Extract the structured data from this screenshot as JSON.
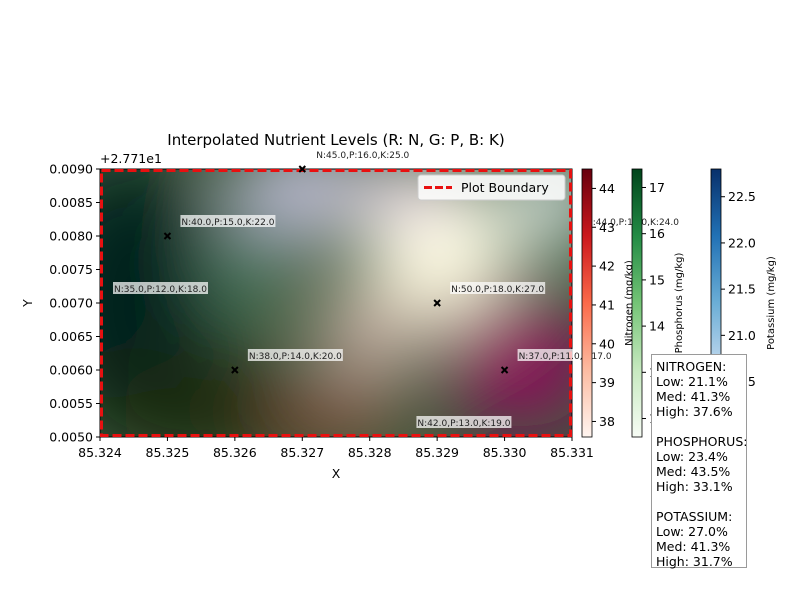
{
  "chart_data": {
    "type": "heatmap",
    "title": "Interpolated Nutrient Levels (R: N, G: P, B: K)",
    "xlabel": "X",
    "ylabel": "Y",
    "xlim": [
      85.324,
      85.331
    ],
    "ylim": [
      0.005,
      0.009
    ],
    "y_offset_label": "+2.771e1",
    "x_ticks": [
      "85.324",
      "85.325",
      "85.326",
      "85.327",
      "85.328",
      "85.329",
      "85.330",
      "85.331"
    ],
    "y_ticks": [
      "0.0050",
      "0.0055",
      "0.0060",
      "0.0065",
      "0.0070",
      "0.0075",
      "0.0080",
      "0.0085",
      "0.0090"
    ],
    "legend": {
      "placement": "top-right",
      "entries": [
        {
          "label": "Plot Boundary",
          "color": "#ff0000",
          "style": "dashed"
        }
      ]
    },
    "points": [
      {
        "x": 85.325,
        "y": 0.008,
        "label": "N:40.0,P:15.0,K:22.0",
        "marker": true
      },
      {
        "x": 85.324,
        "y": 0.007,
        "label": "N:35.0,P:12.0,K:18.0",
        "marker": false
      },
      {
        "x": 85.326,
        "y": 0.006,
        "label": "N:38.0,P:14.0,K:20.0",
        "marker": true
      },
      {
        "x": 85.327,
        "y": 0.009,
        "label": "N:45.0,P:16.0,K:25.0",
        "marker": true
      },
      {
        "x": 85.329,
        "y": 0.007,
        "label": "N:50.0,P:18.0,K:27.0",
        "marker": true
      },
      {
        "x": 85.33,
        "y": 0.006,
        "label": "N:37.0,P:11.0,K:17.0",
        "marker": true
      },
      {
        "x": 85.3285,
        "y": 0.005,
        "label": "N:42.0,P:13.0,K:19.0",
        "marker": false
      },
      {
        "x": 85.331,
        "y": 0.008,
        "label": "N:44.0,P:17.0,K:24.0",
        "marker": false
      }
    ],
    "colorbars": [
      {
        "name": "Nitrogen",
        "label": "Nitrogen (mg/kg)",
        "range": [
          37.6,
          44.5
        ],
        "ticks": [
          "38",
          "39",
          "40",
          "41",
          "42",
          "43",
          "44"
        ],
        "color_low": "#fff5f0",
        "color_high": "#67000d"
      },
      {
        "name": "Phosphorus",
        "label": "Phosphorus (mg/kg)",
        "range": [
          11.6,
          17.4
        ],
        "ticks": [
          "12",
          "13",
          "14",
          "15",
          "16",
          "17"
        ],
        "color_low": "#f7fcf5",
        "color_high": "#00441b"
      },
      {
        "name": "Potassium",
        "label": "Potassium (mg/kg)",
        "range": [
          19.9,
          22.8
        ],
        "ticks": [
          "20.5",
          "21.0",
          "21.5",
          "22.0",
          "22.5"
        ],
        "color_low": "#f7fbff",
        "color_high": "#08306b"
      }
    ]
  },
  "stats": [
    {
      "name": "NITROGEN:",
      "low": "Low: 21.1%",
      "med": "Med: 41.3%",
      "high": "High: 37.6%"
    },
    {
      "name": "PHOSPHORUS:",
      "low": "Low: 23.4%",
      "med": "Med: 43.5%",
      "high": "High: 33.1%"
    },
    {
      "name": "POTASSIUM:",
      "low": "Low: 27.0%",
      "med": "Med: 41.3%",
      "high": "High: 31.7%"
    }
  ]
}
